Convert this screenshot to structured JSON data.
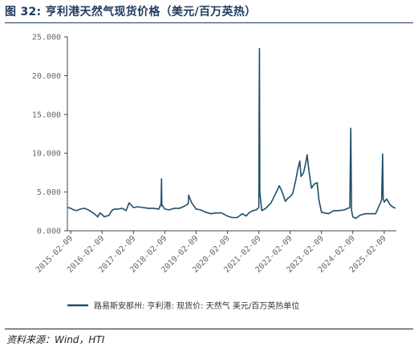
{
  "figure": {
    "title": "图 32:  亨利港天然气现货价格（美元/百万英热）",
    "source": "资料来源：Wind，HTI"
  },
  "chart_data": {
    "type": "line",
    "title": "",
    "xlabel": "",
    "ylabel": "",
    "ylim": [
      0,
      25
    ],
    "xlim": [
      "2015-01-01",
      "2025-06-30"
    ],
    "y_ticks": [
      0,
      5,
      10,
      15,
      20,
      25
    ],
    "y_tick_labels": [
      "0.000",
      "5.000",
      "10.000",
      "15.000",
      "20.000",
      "25.000"
    ],
    "x_tick_labels": [
      "2015-02-09",
      "2016-02-09",
      "2017-02-09",
      "2018-02-09",
      "2019-02-09",
      "2020-02-09",
      "2021-02-09",
      "2022-02-09",
      "2023-02-09",
      "2024-02-09",
      "2025-02-09"
    ],
    "grid": false,
    "legend_position": "bottom",
    "color": "#1f4e6b",
    "series": [
      {
        "name": "路易斯安那州: 亨利港: 现货价: 天然气   美元/百万英热单位",
        "x": [
          "2015-01-05",
          "2015-02-09",
          "2015-03-15",
          "2015-04-20",
          "2015-06-01",
          "2015-07-15",
          "2015-09-01",
          "2015-10-15",
          "2015-12-01",
          "2015-12-20",
          "2016-01-15",
          "2016-02-09",
          "2016-03-05",
          "2016-04-01",
          "2016-05-01",
          "2016-06-01",
          "2016-07-01",
          "2016-08-15",
          "2016-10-01",
          "2016-11-15",
          "2016-12-20",
          "2017-01-15",
          "2017-02-09",
          "2017-04-01",
          "2017-06-01",
          "2017-08-01",
          "2017-10-01",
          "2017-12-01",
          "2017-12-28",
          "2018-01-02",
          "2018-01-05",
          "2018-01-10",
          "2018-02-09",
          "2018-04-01",
          "2018-06-01",
          "2018-08-01",
          "2018-10-01",
          "2018-11-10",
          "2018-11-14",
          "2018-11-20",
          "2018-12-20",
          "2019-01-15",
          "2019-02-09",
          "2019-04-01",
          "2019-06-01",
          "2019-08-01",
          "2019-10-01",
          "2019-12-01",
          "2020-02-09",
          "2020-04-01",
          "2020-06-01",
          "2020-08-01",
          "2020-09-15",
          "2020-10-15",
          "2020-12-01",
          "2021-01-10",
          "2021-02-09",
          "2021-02-12",
          "2021-02-16",
          "2021-02-20",
          "2021-03-15",
          "2021-05-01",
          "2021-07-01",
          "2021-09-01",
          "2021-10-05",
          "2021-11-01",
          "2021-12-15",
          "2022-01-15",
          "2022-02-09",
          "2022-03-10",
          "2022-04-15",
          "2022-05-10",
          "2022-06-01",
          "2022-06-15",
          "2022-07-15",
          "2022-08-10",
          "2022-08-25",
          "2022-09-15",
          "2022-10-15",
          "2022-11-15",
          "2022-12-20",
          "2023-01-10",
          "2023-02-09",
          "2023-03-15",
          "2023-05-01",
          "2023-07-01",
          "2023-09-01",
          "2023-11-01",
          "2024-01-05",
          "2024-01-16",
          "2024-01-25",
          "2024-02-09",
          "2024-03-15",
          "2024-05-01",
          "2024-07-01",
          "2024-09-01",
          "2024-11-01",
          "2024-12-15",
          "2025-01-10",
          "2025-01-21",
          "2025-01-28",
          "2025-02-09",
          "2025-03-10",
          "2025-04-15",
          "2025-05-15",
          "2025-06-20"
        ],
        "values": [
          3.0,
          2.9,
          2.7,
          2.6,
          2.8,
          2.9,
          2.7,
          2.4,
          2.0,
          1.8,
          2.3,
          2.1,
          1.8,
          1.9,
          2.0,
          2.6,
          2.8,
          2.8,
          2.9,
          2.6,
          3.6,
          3.3,
          3.0,
          3.1,
          3.0,
          2.9,
          2.9,
          2.8,
          3.5,
          6.7,
          3.2,
          3.3,
          2.8,
          2.7,
          2.9,
          2.9,
          3.2,
          3.5,
          4.6,
          4.4,
          3.6,
          3.2,
          2.8,
          2.7,
          2.4,
          2.2,
          2.3,
          2.3,
          1.9,
          1.7,
          1.7,
          2.2,
          1.9,
          2.3,
          2.6,
          2.7,
          3.0,
          16.0,
          23.5,
          5.0,
          2.6,
          2.9,
          3.6,
          5.0,
          5.8,
          5.2,
          3.8,
          4.2,
          4.4,
          4.8,
          6.5,
          8.0,
          9.0,
          7.0,
          7.5,
          8.8,
          9.8,
          7.8,
          5.5,
          6.0,
          6.2,
          4.0,
          2.4,
          2.3,
          2.2,
          2.6,
          2.6,
          2.7,
          3.0,
          13.2,
          2.6,
          1.8,
          1.6,
          2.0,
          2.2,
          2.2,
          2.2,
          3.3,
          4.0,
          9.9,
          4.2,
          3.7,
          4.1,
          3.4,
          3.1,
          2.9
        ]
      }
    ]
  }
}
